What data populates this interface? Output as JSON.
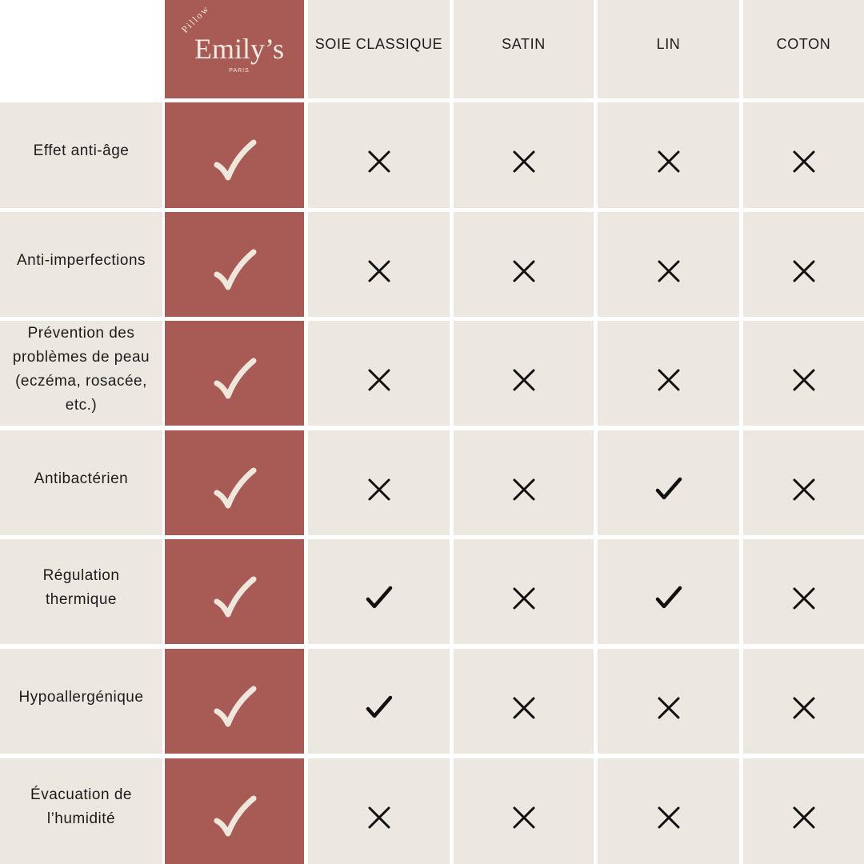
{
  "header": {
    "brand": {
      "tagline": "Pillow",
      "name": "Emily’s",
      "location": "PARIS"
    },
    "columns": [
      "SOIE CLASSIQUE",
      "SATIN",
      "LIN",
      "COTON"
    ]
  },
  "rows": [
    {
      "label": "Effet anti-âge",
      "brand": true,
      "values": [
        false,
        false,
        false,
        false
      ]
    },
    {
      "label": "Anti-imperfections",
      "brand": true,
      "values": [
        false,
        false,
        false,
        false
      ]
    },
    {
      "label": "Prévention des problèmes de peau (eczéma, rosacée, etc.)",
      "brand": true,
      "values": [
        false,
        false,
        false,
        false
      ]
    },
    {
      "label": "Antibactérien",
      "brand": true,
      "values": [
        false,
        false,
        true,
        false
      ]
    },
    {
      "label": "Régulation thermique",
      "brand": true,
      "values": [
        true,
        false,
        true,
        false
      ]
    },
    {
      "label": "Hypoallergénique",
      "brand": true,
      "values": [
        true,
        false,
        false,
        false
      ]
    },
    {
      "label": "Évacuation de l’humidité",
      "brand": true,
      "values": [
        false,
        false,
        false,
        false
      ]
    }
  ]
}
